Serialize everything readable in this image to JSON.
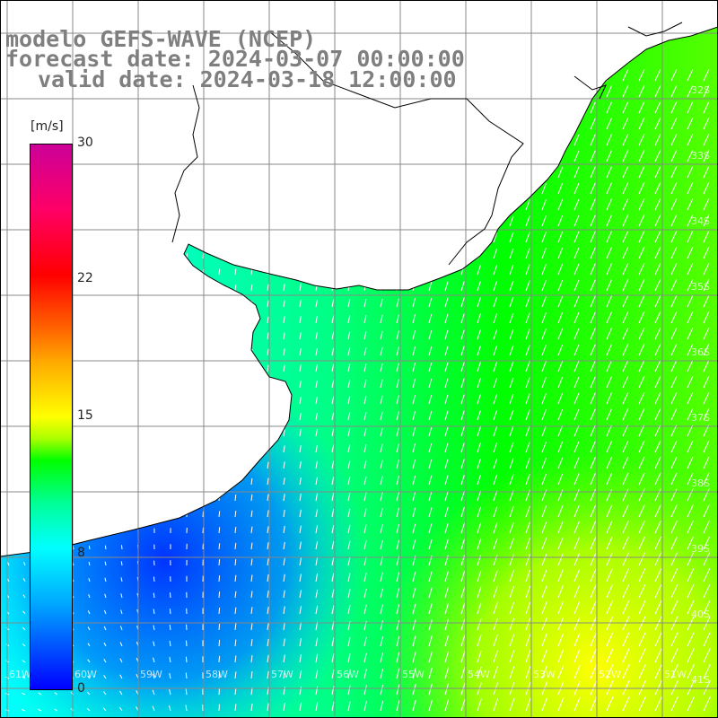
{
  "title": {
    "model": "modelo GEFS-WAVE (NCEP)",
    "forecast": "forecast date: 2024-03-07 00:00:00",
    "valid": "valid date: 2024-03-18 12:00:00"
  },
  "colorbar": {
    "unit": "[m/s]",
    "ticks": [
      "30",
      "22",
      "15",
      "8",
      "0"
    ],
    "min": 0,
    "max": 30,
    "colors": [
      "#0000ff",
      "#00aaff",
      "#00ffff",
      "#00ff00",
      "#ffff00",
      "#ff8800",
      "#ff0000",
      "#cc0099"
    ]
  },
  "map": {
    "lat_labels": [
      "32S",
      "33S",
      "34S",
      "35S",
      "36S",
      "37S",
      "38S",
      "39S",
      "40S",
      "41S"
    ],
    "lon_labels": [
      "61W",
      "60W",
      "59W",
      "58W",
      "57W",
      "56W",
      "55W",
      "54W",
      "53W",
      "52W",
      "51W"
    ],
    "land_color": "#ffffff",
    "grid_color": "#888888",
    "coast_color": "#000000"
  }
}
